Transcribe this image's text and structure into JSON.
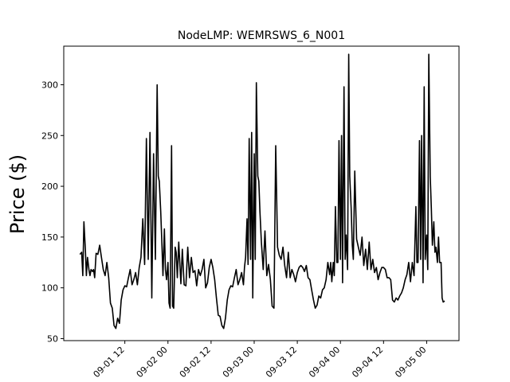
{
  "chart_data": {
    "type": "line",
    "title": "NodeLMP: WEMRSWS_6_N001",
    "xlabel": "",
    "ylabel": "Price ($)",
    "grid": false,
    "legend": "none",
    "line_color": "#000000",
    "xlim_hours": [
      -5,
      105
    ],
    "ylim": [
      48,
      338
    ],
    "x_unit": "hour offset from 2000-09-01 00:00",
    "x_ticks": [
      {
        "hour": 12,
        "label": "09-01 12"
      },
      {
        "hour": 24,
        "label": "09-02 00"
      },
      {
        "hour": 36,
        "label": "09-02 12"
      },
      {
        "hour": 48,
        "label": "09-03 00"
      },
      {
        "hour": 60,
        "label": "09-03 12"
      },
      {
        "hour": 72,
        "label": "09-04 00"
      },
      {
        "hour": 84,
        "label": "09-04 12"
      },
      {
        "hour": 96,
        "label": "09-05 00"
      }
    ],
    "y_ticks": [
      50,
      100,
      150,
      200,
      250,
      300
    ],
    "series": [
      {
        "x": [
          -0.5,
          0,
          0.3,
          0.6,
          1.0,
          1.3,
          1.6,
          2.0,
          2.3,
          2.6,
          3.0,
          3.3,
          3.6,
          4.0,
          4.5,
          5.0,
          5.5,
          6.0,
          6.5,
          7.0,
          7.5,
          8.0,
          8.5,
          9.0,
          9.5,
          10.0,
          10.5,
          11.0,
          11.5,
          12.0,
          12.5,
          13.0,
          13.5,
          14.0,
          14.5,
          15.0,
          15.5,
          16.0,
          16.5,
          17.0,
          17.5,
          18.0,
          18.5,
          19.0,
          19.5,
          20.0,
          20.5,
          21.0,
          21.3,
          21.6,
          22.0,
          22.3,
          22.6,
          23.0,
          23.3,
          23.6,
          24.0,
          24.3,
          24.6,
          25.0,
          25.3,
          25.6,
          26.0,
          26.3,
          26.6,
          27.0,
          27.3,
          27.6,
          28.0,
          28.5,
          29.0,
          29.5,
          30.0,
          30.5,
          31.0,
          31.5,
          32.0,
          32.5,
          33.0,
          33.5,
          34.0,
          34.5,
          35.0,
          35.5,
          36.0,
          36.5,
          37.0,
          37.5,
          38.0,
          38.5,
          39.0,
          39.5,
          40.0,
          40.5,
          41.0,
          41.5,
          42.0,
          42.5,
          43.0,
          43.5,
          44.0,
          44.5,
          45.0,
          45.3,
          45.6,
          46.0,
          46.3,
          46.6,
          47.0,
          47.3,
          47.6,
          48.0,
          48.3,
          48.6,
          49.0,
          49.3,
          49.6,
          50.0,
          50.5,
          51.0,
          51.5,
          52.0,
          52.5,
          53.0,
          53.5,
          54.0,
          54.5,
          55.0,
          55.5,
          56.0,
          56.5,
          57.0,
          57.5,
          58.0,
          58.5,
          59.0,
          59.5,
          60.0,
          60.5,
          61.0,
          61.5,
          62.0,
          62.5,
          63.0,
          63.5,
          64.0,
          64.5,
          65.0,
          65.5,
          66.0,
          66.5,
          67.0,
          67.5,
          68.0,
          68.5,
          69.0,
          69.3,
          69.6,
          70.0,
          70.3,
          70.6,
          71.0,
          71.3,
          71.6,
          72.0,
          72.3,
          72.6,
          73.0,
          73.3,
          73.6,
          74.0,
          74.3,
          74.6,
          75.0,
          75.3,
          75.6,
          76.0,
          76.5,
          77.0,
          77.5,
          78.0,
          78.5,
          79.0,
          79.5,
          80.0,
          80.5,
          81.0,
          81.5,
          82.0,
          82.5,
          83.0,
          83.5,
          84.0,
          84.5,
          85.0,
          85.5,
          86.0,
          86.5,
          87.0,
          87.5,
          88.0,
          88.5,
          89.0,
          89.5,
          90.0,
          90.5,
          91.0,
          91.5,
          92.0,
          92.5,
          93.0,
          93.3,
          93.6,
          94.0,
          94.3,
          94.6,
          95.0,
          95.3,
          95.6,
          96.0,
          96.3,
          96.6,
          97.0,
          97.3,
          97.6,
          98.0,
          98.3,
          98.6,
          99.0,
          99.3,
          99.6,
          100.0,
          100.3,
          100.6,
          101.0
        ],
        "y": [
          133,
          135,
          112,
          165,
          138,
          112,
          130,
          118,
          112,
          118,
          116,
          118,
          110,
          134,
          133,
          142,
          130,
          118,
          112,
          125,
          110,
          85,
          80,
          63,
          60,
          70,
          65,
          88,
          98,
          102,
          101,
          110,
          118,
          103,
          108,
          115,
          103,
          120,
          130,
          168,
          123,
          247,
          128,
          253,
          90,
          232,
          128,
          300,
          210,
          205,
          175,
          145,
          112,
          158,
          118,
          108,
          125,
          85,
          80,
          240,
          82,
          80,
          140,
          135,
          110,
          145,
          125,
          104,
          138,
          103,
          102,
          140,
          110,
          130,
          115,
          117,
          102,
          118,
          112,
          118,
          128,
          100,
          105,
          120,
          128,
          120,
          108,
          90,
          73,
          72,
          63,
          60,
          70,
          88,
          98,
          102,
          101,
          110,
          118,
          103,
          108,
          115,
          103,
          120,
          130,
          168,
          123,
          247,
          128,
          253,
          90,
          232,
          128,
          302,
          210,
          205,
          175,
          145,
          118,
          156,
          112,
          123,
          108,
          82,
          80,
          240,
          140,
          132,
          128,
          140,
          122,
          110,
          135,
          110,
          118,
          113,
          106,
          115,
          120,
          122,
          120,
          116,
          122,
          110,
          108,
          98,
          88,
          80,
          83,
          92,
          90,
          98,
          100,
          108,
          125,
          113,
          125,
          106,
          125,
          112,
          180,
          125,
          125,
          245,
          128,
          250,
          105,
          298,
          128,
          152,
          118,
          330,
          210,
          178,
          142,
          128,
          215,
          148,
          140,
          132,
          150,
          122,
          138,
          118,
          145,
          118,
          128,
          115,
          120,
          108,
          115,
          120,
          120,
          118,
          110,
          110,
          108,
          88,
          86,
          90,
          88,
          92,
          95,
          100,
          108,
          113,
          125,
          106,
          125,
          112,
          180,
          125,
          125,
          245,
          128,
          250,
          105,
          298,
          128,
          152,
          118,
          330,
          210,
          178,
          142,
          165,
          135,
          140,
          125,
          150,
          125,
          125,
          90,
          86,
          87
        ]
      }
    ]
  }
}
